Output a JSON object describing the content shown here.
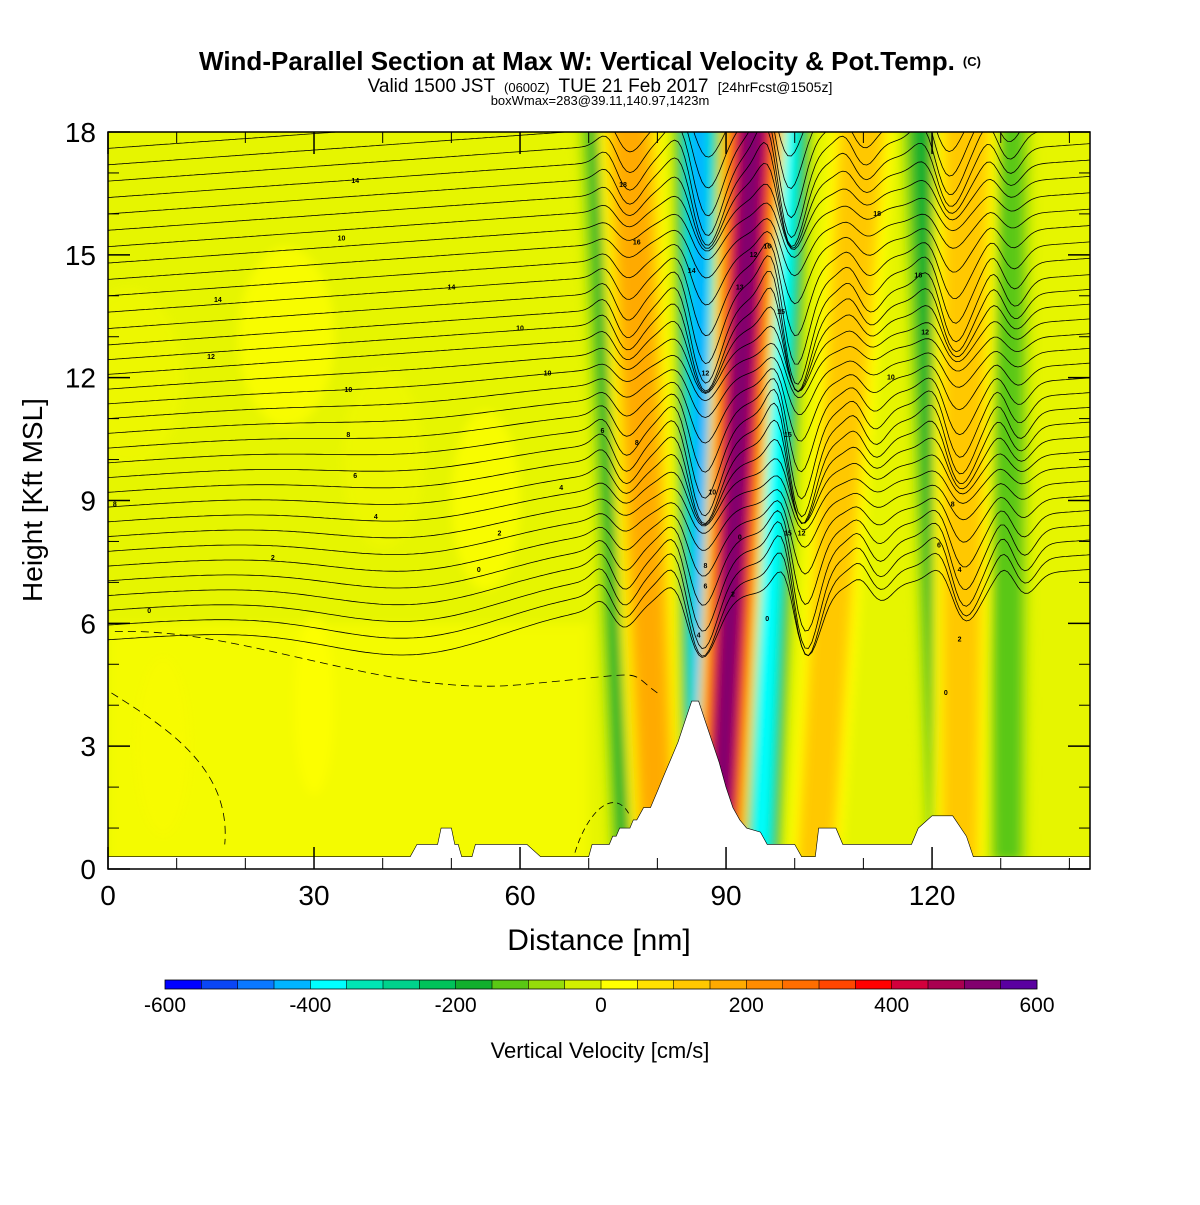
{
  "header": {
    "title_main": "Wind-Parallel Section at Max W: Vertical Velocity & Pot.Temp.",
    "title_mark": "(C)",
    "valid_a": "Valid 1500 JST",
    "valid_b": "(0600Z)",
    "valid_c": "TUE 21 Feb 2017",
    "valid_d": "[24hrFcst@1505z]",
    "box_info": "boxWmax=283@39.11,140.97,1423m"
  },
  "chart_data": {
    "type": "heatmap",
    "xlabel": "Distance [nm]",
    "ylabel": "Height [Kft MSL]",
    "xlim": [
      0,
      143
    ],
    "ylim": [
      0,
      18
    ],
    "x_ticks": [
      0,
      30,
      60,
      90,
      120
    ],
    "y_ticks": [
      0,
      3,
      6,
      9,
      12,
      15,
      18
    ],
    "colorbar": {
      "label": "Vertical Velocity [cm/s]",
      "range": [
        -600,
        600
      ],
      "step": 50,
      "tick_values": [
        -600,
        -400,
        -200,
        0,
        200,
        400,
        600
      ],
      "colors": [
        "#0000ff",
        "#0a46f5",
        "#0a78ff",
        "#00b4ff",
        "#00ffff",
        "#00e6b4",
        "#00d28c",
        "#00c35a",
        "#12af2d",
        "#5ac814",
        "#96dc0a",
        "#d2f000",
        "#ffff00",
        "#ffe100",
        "#ffc800",
        "#ffaa00",
        "#ff8c00",
        "#ff6e00",
        "#ff4600",
        "#ff0000",
        "#d2003c",
        "#aa0050",
        "#82006e",
        "#5a00a0"
      ]
    },
    "updraft_bands": [
      {
        "x_top": 76,
        "x_bottom": 80,
        "w_max": 200,
        "width_nm": 3
      },
      {
        "x_top": 94,
        "x_bottom": 89,
        "w_max": 580,
        "width_nm": 3
      },
      {
        "x_top": 110,
        "x_bottom": 103,
        "w_max": 150,
        "width_nm": 3
      },
      {
        "x_top": 125,
        "x_bottom": 124,
        "w_max": 180,
        "width_nm": 3
      }
    ],
    "downdraft_bands": [
      {
        "x_top": 72,
        "x_bottom": 76,
        "w_min": -220,
        "width_nm": 2.5
      },
      {
        "x_top": 86,
        "x_bottom": 86.5,
        "w_min": -450,
        "width_nm": 2.5
      },
      {
        "x_top": 99,
        "x_bottom": 95,
        "w_min": -420,
        "width_nm": 2.5
      },
      {
        "x_top": 119,
        "x_bottom": 122,
        "w_min": -230,
        "width_nm": 2.5
      },
      {
        "x_top": 131,
        "x_bottom": 131,
        "w_min": -150,
        "width_nm": 2.5
      }
    ],
    "terrain_kft": [
      [
        0,
        0.3
      ],
      [
        44,
        0.3
      ],
      [
        45,
        0.6
      ],
      [
        48,
        0.6
      ],
      [
        48.5,
        1.0
      ],
      [
        50,
        1.0
      ],
      [
        50.5,
        0.6
      ],
      [
        51,
        0.6
      ],
      [
        51.5,
        0.3
      ],
      [
        53,
        0.3
      ],
      [
        53.5,
        0.6
      ],
      [
        61,
        0.6
      ],
      [
        63,
        0.3
      ],
      [
        70,
        0.3
      ],
      [
        70.5,
        0.6
      ],
      [
        73,
        0.6
      ],
      [
        73.5,
        0.8
      ],
      [
        74,
        0.8
      ],
      [
        74.5,
        1.0
      ],
      [
        76,
        1.0
      ],
      [
        76.5,
        1.2
      ],
      [
        77,
        1.2
      ],
      [
        78,
        1.5
      ],
      [
        79,
        1.5
      ],
      [
        80,
        1.9
      ],
      [
        81,
        2.3
      ],
      [
        82,
        2.7
      ],
      [
        83,
        3.1
      ],
      [
        84,
        3.6
      ],
      [
        85,
        4.1
      ],
      [
        86,
        4.1
      ],
      [
        87,
        3.6
      ],
      [
        88,
        3.1
      ],
      [
        89,
        2.6
      ],
      [
        90,
        2.0
      ],
      [
        91,
        1.5
      ],
      [
        92,
        1.2
      ],
      [
        93,
        1.0
      ],
      [
        95,
        0.9
      ],
      [
        96,
        0.6
      ],
      [
        100,
        0.6
      ],
      [
        101,
        0.3
      ],
      [
        103,
        0.3
      ],
      [
        103.5,
        1.0
      ],
      [
        106,
        1.0
      ],
      [
        107,
        0.6
      ],
      [
        117,
        0.6
      ],
      [
        118,
        1.0
      ],
      [
        120,
        1.3
      ],
      [
        123,
        1.3
      ],
      [
        125,
        0.8
      ],
      [
        126,
        0.3
      ],
      [
        143,
        0.3
      ]
    ],
    "contour_labels": [
      {
        "x": 36,
        "y": 16.8,
        "text": "14"
      },
      {
        "x": 34,
        "y": 15.4,
        "text": "10"
      },
      {
        "x": 16,
        "y": 13.9,
        "text": "14"
      },
      {
        "x": 15,
        "y": 12.5,
        "text": "12"
      },
      {
        "x": 50,
        "y": 14.2,
        "text": "14"
      },
      {
        "x": 60,
        "y": 13.2,
        "text": "10"
      },
      {
        "x": 35,
        "y": 11.7,
        "text": "10"
      },
      {
        "x": 35,
        "y": 10.6,
        "text": "8"
      },
      {
        "x": 36,
        "y": 9.6,
        "text": "6"
      },
      {
        "x": 1,
        "y": 8.9,
        "text": "8"
      },
      {
        "x": 39,
        "y": 8.6,
        "text": "4"
      },
      {
        "x": 57,
        "y": 8.2,
        "text": "2"
      },
      {
        "x": 24,
        "y": 7.6,
        "text": "2"
      },
      {
        "x": 54,
        "y": 7.3,
        "text": "0"
      },
      {
        "x": 6,
        "y": 6.3,
        "text": "0"
      },
      {
        "x": 64,
        "y": 12.1,
        "text": "10"
      },
      {
        "x": 66,
        "y": 9.3,
        "text": "4"
      },
      {
        "x": 72,
        "y": 10.7,
        "text": "6"
      },
      {
        "x": 77,
        "y": 10.4,
        "text": "8"
      },
      {
        "x": 75,
        "y": 16.7,
        "text": "18"
      },
      {
        "x": 77,
        "y": 15.3,
        "text": "16"
      },
      {
        "x": 85,
        "y": 14.6,
        "text": "14"
      },
      {
        "x": 87,
        "y": 12.1,
        "text": "12"
      },
      {
        "x": 88,
        "y": 9.2,
        "text": "10"
      },
      {
        "x": 87,
        "y": 7.4,
        "text": "8"
      },
      {
        "x": 87,
        "y": 6.9,
        "text": "6"
      },
      {
        "x": 86,
        "y": 5.7,
        "text": "4"
      },
      {
        "x": 91,
        "y": 6.7,
        "text": "2"
      },
      {
        "x": 92,
        "y": 8.1,
        "text": "0"
      },
      {
        "x": 94,
        "y": 15.0,
        "text": "12"
      },
      {
        "x": 92,
        "y": 14.2,
        "text": "13"
      },
      {
        "x": 96,
        "y": 15.2,
        "text": "16"
      },
      {
        "x": 98,
        "y": 13.6,
        "text": "15"
      },
      {
        "x": 99,
        "y": 10.6,
        "text": "15"
      },
      {
        "x": 99,
        "y": 8.2,
        "text": "15"
      },
      {
        "x": 101,
        "y": 8.2,
        "text": "12"
      },
      {
        "x": 96,
        "y": 6.1,
        "text": "0"
      },
      {
        "x": 112,
        "y": 16.0,
        "text": "18"
      },
      {
        "x": 118,
        "y": 14.5,
        "text": "16"
      },
      {
        "x": 119,
        "y": 13.1,
        "text": "12"
      },
      {
        "x": 114,
        "y": 12.0,
        "text": "10"
      },
      {
        "x": 123,
        "y": 8.9,
        "text": "8"
      },
      {
        "x": 121,
        "y": 7.9,
        "text": "6"
      },
      {
        "x": 124,
        "y": 7.3,
        "text": "4"
      },
      {
        "x": 124,
        "y": 5.6,
        "text": "2"
      },
      {
        "x": 122,
        "y": 4.3,
        "text": "0"
      }
    ]
  }
}
